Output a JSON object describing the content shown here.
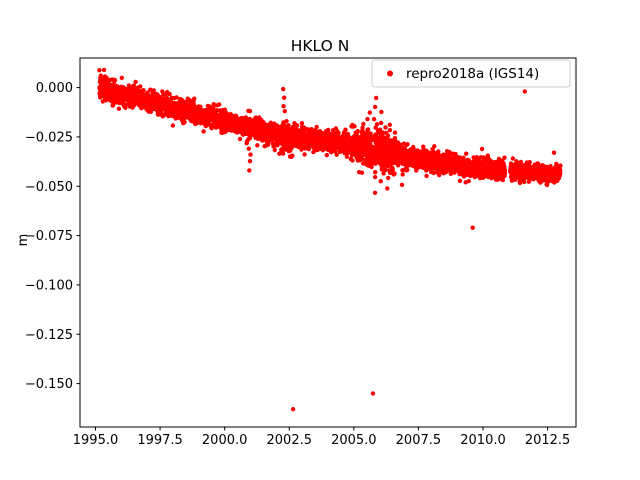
{
  "figure": {
    "background": "#ffffff"
  },
  "chart_data": {
    "type": "scatter",
    "title": "HKLO N",
    "xlabel": "",
    "ylabel": "m",
    "grid": false,
    "legend": {
      "position": "upper right",
      "entries": [
        {
          "label": "repro2018a (IGS14)",
          "color": "#ff0000",
          "marker": "dot"
        }
      ]
    },
    "xlim": [
      1994.4,
      2013.6
    ],
    "ylim": [
      -0.172,
      0.015
    ],
    "xticks": {
      "values": [
        1995.0,
        1997.5,
        2000.0,
        2002.5,
        2005.0,
        2007.5,
        2010.0,
        2012.5
      ],
      "labels": [
        "1995.0",
        "1997.5",
        "2000.0",
        "2002.5",
        "2005.0",
        "2007.5",
        "2010.0",
        "2012.5"
      ]
    },
    "yticks": {
      "values": [
        0.0,
        -0.025,
        -0.05,
        -0.075,
        -0.1,
        -0.125,
        -0.15
      ],
      "labels": [
        "0.000",
        "−0.025",
        "−0.050",
        "−0.075",
        "−0.100",
        "−0.125",
        "−0.150"
      ]
    },
    "series": [
      {
        "name": "repro2018a (IGS14)",
        "color": "#ff0000",
        "marker": "dot",
        "marker_radius": 2.2,
        "generator": {
          "seed": 7,
          "t_start": 1995.15,
          "t_end": 2013.0,
          "t_step": 0.004,
          "trend_keypoints": [
            [
              1995.15,
              0.0
            ],
            [
              1996.5,
              -0.005
            ],
            [
              1997.5,
              -0.0085
            ],
            [
              1998.5,
              -0.012
            ],
            [
              2000.0,
              -0.017
            ],
            [
              2001.0,
              -0.0205
            ],
            [
              2002.5,
              -0.025
            ],
            [
              2003.5,
              -0.0265
            ],
            [
              2005.0,
              -0.029
            ],
            [
              2006.0,
              -0.0315
            ],
            [
              2007.5,
              -0.036
            ],
            [
              2009.0,
              -0.0395
            ],
            [
              2010.0,
              -0.041
            ],
            [
              2011.5,
              -0.0425
            ],
            [
              2013.0,
              -0.044
            ]
          ],
          "noise_std": 0.0025,
          "noise_regions": [
            [
              1995.15,
              1995.7,
              0.0032
            ],
            [
              2001.8,
              2003.1,
              0.0032
            ],
            [
              2004.9,
              2006.6,
              0.0045
            ],
            [
              2011.2,
              2013.0,
              0.0022
            ]
          ],
          "gaps": [
            [
              2010.85,
              2011.05
            ]
          ],
          "outlier_columns": [
            [
              2000.95,
              -0.022,
              -0.042,
              6
            ],
            [
              2002.3,
              -0.001,
              -0.03,
              8
            ],
            [
              2005.55,
              -0.012,
              -0.041,
              8
            ],
            [
              2005.82,
              -0.006,
              -0.052,
              10
            ],
            [
              2006.05,
              -0.013,
              -0.046,
              8
            ],
            [
              2006.35,
              -0.02,
              -0.051,
              8
            ],
            [
              2006.88,
              -0.032,
              -0.049,
              6
            ]
          ],
          "outlier_points": [
            [
              2002.65,
              -0.163
            ],
            [
              2005.74,
              -0.155
            ],
            [
              2009.6,
              -0.071
            ],
            [
              2011.62,
              -0.002
            ],
            [
              2012.75,
              -0.033
            ]
          ]
        }
      }
    ]
  }
}
